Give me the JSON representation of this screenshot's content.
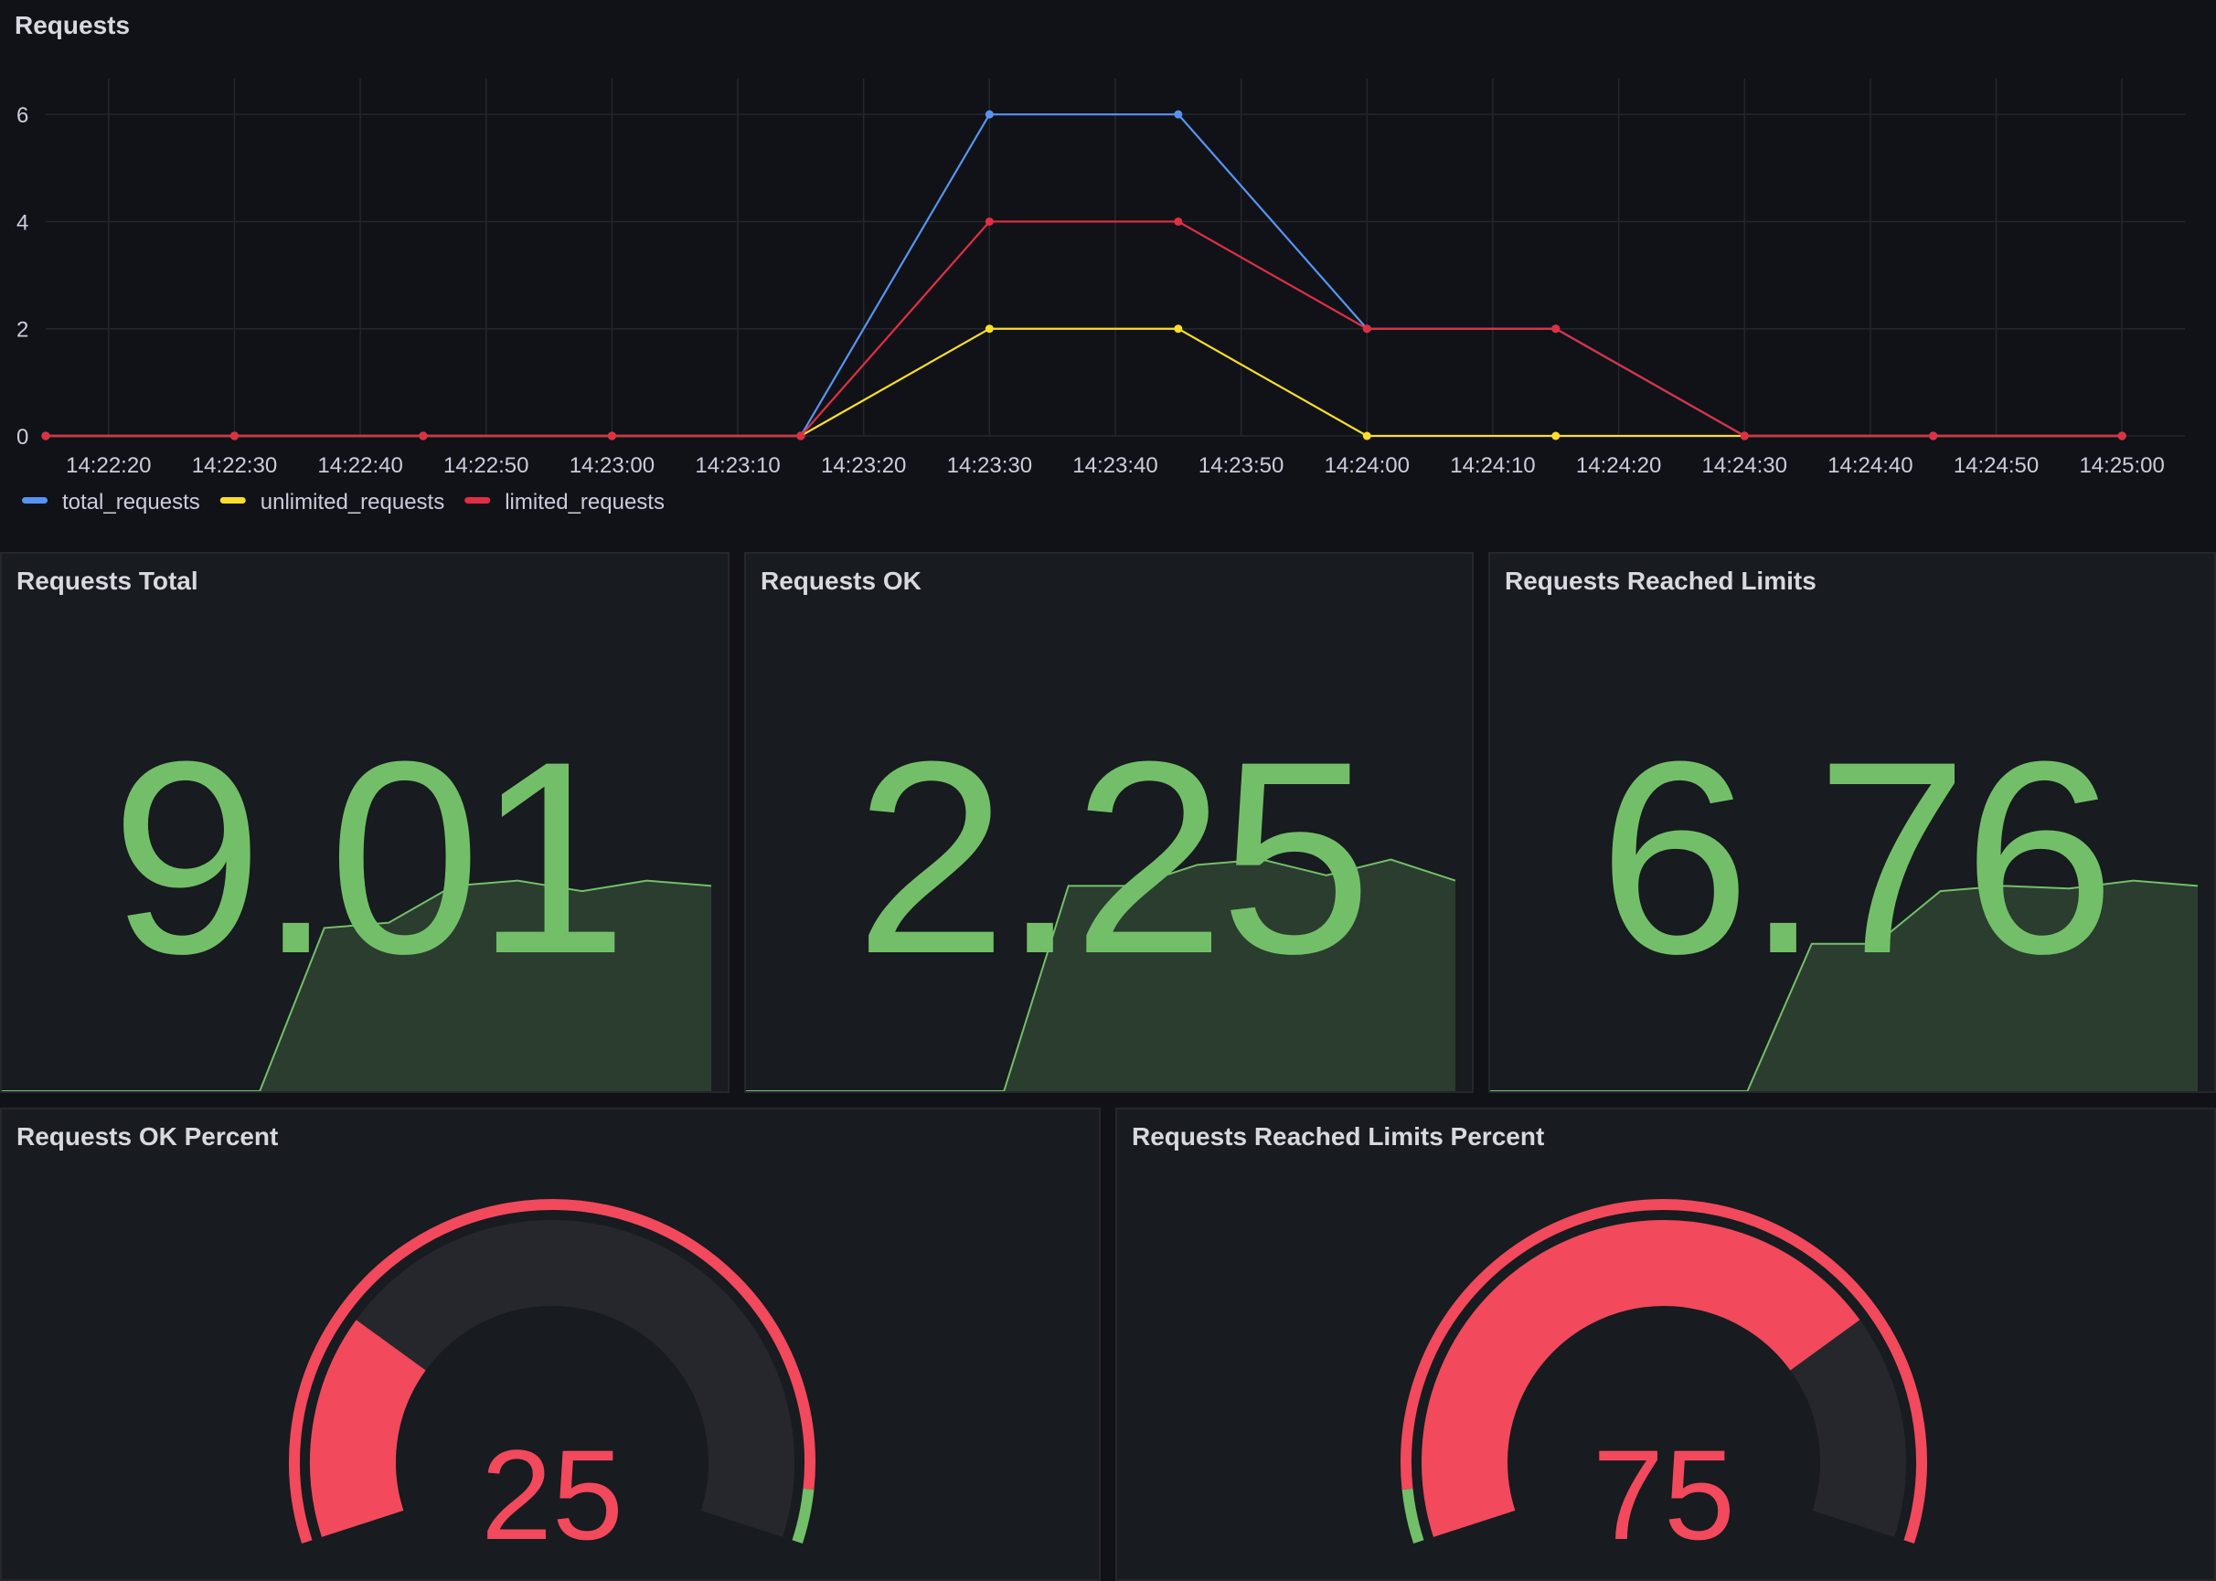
{
  "requests_panel": {
    "title": "Requests"
  },
  "chart_data": {
    "type": "line",
    "title": "Requests",
    "x": [
      "14:22:15",
      "14:22:30",
      "14:22:45",
      "14:23:00",
      "14:23:15",
      "14:23:30",
      "14:23:45",
      "14:24:00",
      "14:24:15",
      "14:24:30",
      "14:24:45",
      "14:25:00"
    ],
    "x_ticks": [
      "14:22:20",
      "14:22:30",
      "14:22:40",
      "14:22:50",
      "14:23:00",
      "14:23:10",
      "14:23:20",
      "14:23:30",
      "14:23:40",
      "14:23:50",
      "14:24:00",
      "14:24:10",
      "14:24:20",
      "14:24:30",
      "14:24:40",
      "14:24:50",
      "14:25:00"
    ],
    "y_ticks": [
      "0",
      "2",
      "4",
      "6"
    ],
    "ylim": [
      0,
      6.6
    ],
    "series": [
      {
        "name": "total_requests",
        "color": "#5794f2",
        "values": [
          0,
          0,
          0,
          0,
          0,
          6,
          6,
          2,
          2,
          0,
          0,
          0
        ]
      },
      {
        "name": "unlimited_requests",
        "color": "#fade2a",
        "values": [
          0,
          0,
          0,
          0,
          0,
          2,
          2,
          0,
          0,
          0,
          0,
          0
        ]
      },
      {
        "name": "limited_requests",
        "color": "#e02f44",
        "values": [
          0,
          0,
          0,
          0,
          0,
          4,
          4,
          2,
          2,
          0,
          0,
          0
        ]
      }
    ],
    "legend_position": "bottom-left",
    "grid": true
  },
  "stats": [
    {
      "title": "Requests Total",
      "value": "9.01",
      "spark": [
        0,
        0,
        0,
        0,
        0,
        0.62,
        0.64,
        0.78,
        0.8,
        0.76,
        0.8,
        0.78
      ]
    },
    {
      "title": "Requests OK",
      "value": "2.25",
      "spark": [
        0,
        0,
        0,
        0,
        0,
        0.78,
        0.78,
        0.86,
        0.88,
        0.82,
        0.88,
        0.8
      ]
    },
    {
      "title": "Requests Reached Limits",
      "value": "6.76",
      "spark": [
        0,
        0,
        0,
        0,
        0,
        0.56,
        0.56,
        0.76,
        0.78,
        0.77,
        0.8,
        0.78
      ]
    }
  ],
  "gauges": [
    {
      "title": "Requests OK Percent",
      "value": "25",
      "percent": 25
    },
    {
      "title": "Requests Reached Limits Percent",
      "value": "75",
      "percent": 75
    }
  ],
  "colors": {
    "stat_green": "#73bf69",
    "spark_fill": "#2a3d2f",
    "gauge_red": "#f2495c",
    "gauge_green": "#73bf69",
    "gauge_track": "#25272c"
  }
}
